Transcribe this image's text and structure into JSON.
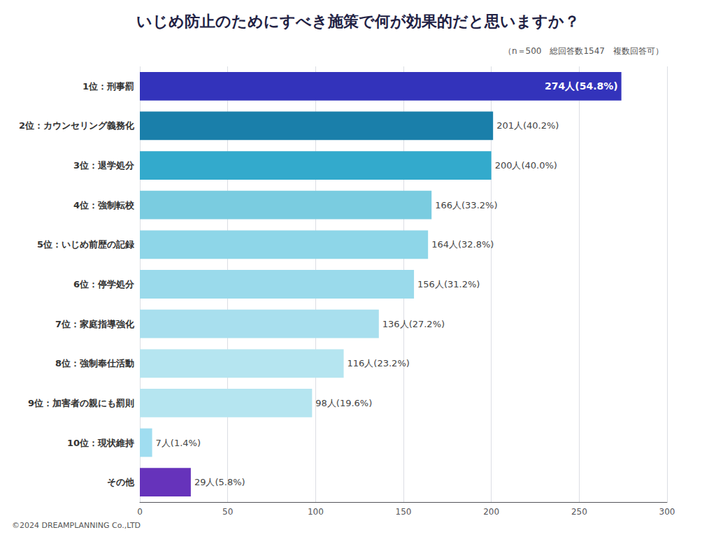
{
  "chart_data": {
    "type": "bar",
    "orientation": "horizontal",
    "title": "いじめ防止のためにすべき施策で何が効果的だと思いますか？",
    "subtitle": "（n＝500　総回答数1547　複数回答可）",
    "annotations": [
      "©2024 DREAMPLANNING Co.,LTD"
    ],
    "categories": [
      "1位：刑事罰",
      "2位：カウンセリング義務化",
      "3位：退学処分",
      "4位：強制転校",
      "5位：いじめ前歴の記録",
      "6位：停学処分",
      "7位：家庭指導強化",
      "8位：強制奉仕活動",
      "9位：加害者の親にも罰則",
      "10位：現状維持",
      "その他"
    ],
    "values": [
      274,
      201,
      200,
      166,
      164,
      156,
      136,
      116,
      98,
      7,
      29
    ],
    "value_labels": [
      "274人(54.8%)",
      "201人(40.2%)",
      "200人(40.0%)",
      "166人(33.2%)",
      "164人(32.8%)",
      "156人(31.2%)",
      "136人(27.2%)",
      "116人(23.2%)",
      "98人(19.6%)",
      "7人(1.4%)",
      "29人(5.8%)"
    ],
    "colors": [
      "#3333bb",
      "#1a7faa",
      "#33aacc",
      "#7acce0",
      "#8ed6e8",
      "#9adaeb",
      "#a8dfee",
      "#b5e5f0",
      "#b5e5f0",
      "#a0ddf0",
      "#6633bb"
    ],
    "data_labels": true,
    "xlim": [
      0,
      300
    ],
    "xticks": [
      0,
      50,
      100,
      150,
      200,
      250,
      300
    ],
    "grid": true
  }
}
